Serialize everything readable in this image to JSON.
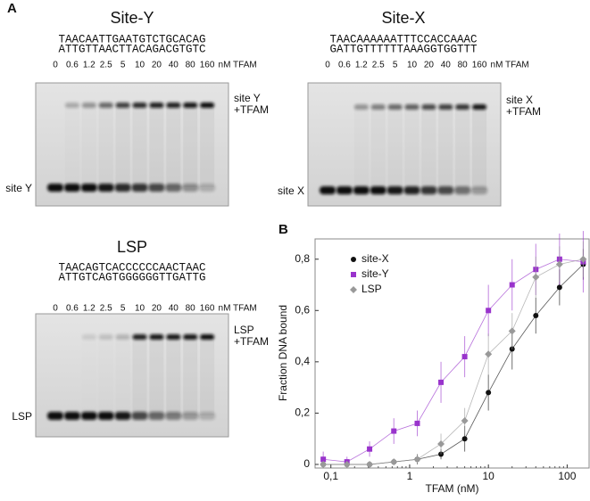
{
  "panel_a_label": "A",
  "gels": [
    {
      "title": "Site-Y",
      "seq_top": "TAACAATTGAATGTCTGCACAG",
      "seq_bottom": "ATTGTTAACTTACAGACGTGTC",
      "lanes": [
        0,
        0.6,
        1.2,
        2.5,
        5,
        10,
        20,
        40,
        80,
        160
      ],
      "unit": "nM TFAM",
      "complex_label": [
        "site Y",
        "+TFAM"
      ],
      "free_label": "site Y"
    },
    {
      "title": "Site-X",
      "seq_top": "TAACAAAAAATTTCCACCAAAC",
      "seq_bottom": "GATTGTTTTTTAAAGGTGGTTT",
      "lanes": [
        0,
        0.6,
        1.2,
        2.5,
        5,
        10,
        20,
        40,
        80,
        160
      ],
      "unit": "nM TFAM",
      "complex_label": [
        "site X",
        "+TFAM"
      ],
      "free_label": "site X"
    },
    {
      "title": "LSP",
      "seq_top": "TAACAGTCACCCCCCAACTAAC",
      "seq_bottom": "ATTGTCAGTGGGGGGTTGATTG",
      "lanes": [
        0,
        0.6,
        1.2,
        2.5,
        5,
        10,
        20,
        40,
        80,
        160
      ],
      "unit": "nM TFAM",
      "complex_label": [
        "LSP",
        "+TFAM"
      ],
      "free_label": "LSP"
    }
  ],
  "chart_data": {
    "type": "scatter",
    "label": "B",
    "x_label": "TFAM (nM)",
    "y_label": "Fraction DNA bound",
    "log_x": true,
    "x": [
      0.08,
      0.16,
      0.31,
      0.63,
      1.25,
      2.5,
      5,
      10,
      20,
      40,
      80,
      160
    ],
    "xlim": [
      0.063,
      190
    ],
    "xticks": [
      {
        "value": 0.1,
        "label": "0,1"
      },
      1,
      10,
      100
    ],
    "ylim": [
      -0.014,
      0.879
    ],
    "yticks": [
      0,
      {
        "value": 0.2,
        "label": "0,2"
      },
      {
        "value": 0.4,
        "label": "0,4"
      },
      {
        "value": 0.6,
        "label": "0,6"
      },
      {
        "value": 0.8,
        "label": "0,8"
      }
    ],
    "series": [
      {
        "name": "site-X",
        "color": "#111111",
        "marker": "circle",
        "values": [
          0,
          0,
          0,
          0.01,
          0.02,
          0.04,
          0.1,
          0.28,
          0.45,
          0.58,
          0.69,
          0.78
        ],
        "errors": [
          0.01,
          0.01,
          0.01,
          0.01,
          0.02,
          0.02,
          0.05,
          0.07,
          0.08,
          0.07,
          0.07,
          0.06
        ]
      },
      {
        "name": "site-Y",
        "color": "#9933cc",
        "marker": "square",
        "values": [
          0.02,
          0.01,
          0.06,
          0.13,
          0.16,
          0.32,
          0.42,
          0.6,
          0.7,
          0.76,
          0.8,
          0.79
        ],
        "errors": [
          0.03,
          0.02,
          0.03,
          0.05,
          0.05,
          0.08,
          0.08,
          0.1,
          0.1,
          0.1,
          0.1,
          0.12
        ]
      },
      {
        "name": "LSP",
        "color": "#999999",
        "marker": "diamond",
        "values": [
          0,
          0,
          0,
          0.01,
          0.02,
          0.08,
          0.17,
          0.43,
          0.52,
          0.73,
          0.78,
          0.8
        ],
        "errors": [
          0.01,
          0.01,
          0.01,
          0.01,
          0.02,
          0.04,
          0.05,
          0.08,
          0.07,
          0.08,
          0.07,
          0.07
        ]
      }
    ]
  }
}
